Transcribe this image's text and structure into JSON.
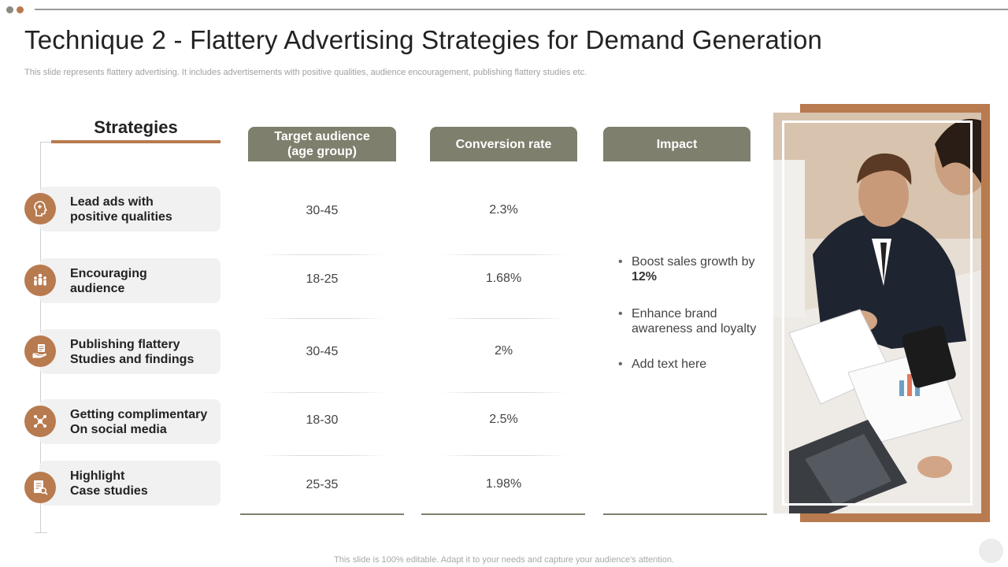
{
  "title": "Technique 2 - Flattery Advertising Strategies for Demand Generation",
  "subtitle": "This slide represents flattery advertising. It includes advertisements with positive qualities, audience encouragement, publishing flattery studies etc.",
  "strategies": {
    "heading": "Strategies",
    "items": [
      {
        "line1": "Lead ads with",
        "line2": "positive qualities",
        "icon": "head-plus-icon"
      },
      {
        "line1": "Encouraging",
        "line2": "audience",
        "icon": "group-people-icon"
      },
      {
        "line1": "Publishing flattery",
        "line2": "Studies and findings",
        "icon": "hand-document-icon"
      },
      {
        "line1": "Getting complimentary",
        "line2": "On social media",
        "icon": "social-network-icon"
      },
      {
        "line1": "Highlight",
        "line2": "Case studies",
        "icon": "case-study-icon"
      }
    ]
  },
  "table": {
    "headers": {
      "target_line1": "Target audience",
      "target_line2": "(age group)",
      "conversion": "Conversion rate",
      "impact": "Impact"
    },
    "rows": [
      {
        "age": "30-45",
        "rate": "2.3%"
      },
      {
        "age": "18-25",
        "rate": "1.68%"
      },
      {
        "age": "30-45",
        "rate": "2%"
      },
      {
        "age": "18-30",
        "rate": "2.5%"
      },
      {
        "age": "25-35",
        "rate": "1.98%"
      }
    ],
    "impact": {
      "item1_text": "Boost sales growth by ",
      "item1_bold": "12%",
      "item2": "Enhance brand awareness and loyalty",
      "item3": "Add text here"
    }
  },
  "footer": "This slide is 100% editable. Adapt it to your needs and capture your audience's attention.",
  "colors": {
    "accent_brown": "#b87a4f",
    "header_olive": "#7e7f6c",
    "strategy_card": "#f1f1f1"
  }
}
